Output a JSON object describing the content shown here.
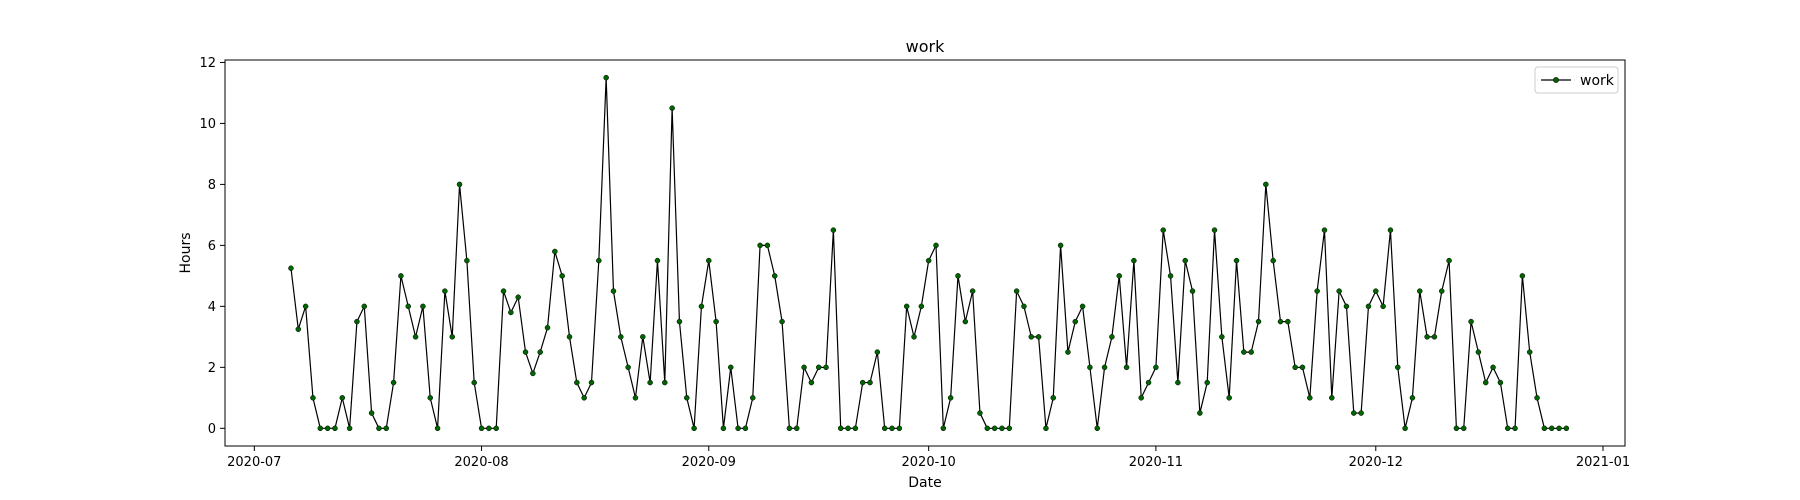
{
  "chart_data": {
    "type": "line",
    "title": "work",
    "xlabel": "Date",
    "ylabel": "Hours",
    "x_start": "2020-07-06",
    "x_end": "2020-12-26",
    "xlim": [
      "2020-06-27",
      "2021-01-04"
    ],
    "ylim": [
      -0.58,
      12.08
    ],
    "x_ticks": [
      {
        "date": "2020-07-01",
        "label": "2020-07"
      },
      {
        "date": "2020-08-01",
        "label": "2020-08"
      },
      {
        "date": "2020-09-01",
        "label": "2020-09"
      },
      {
        "date": "2020-10-01",
        "label": "2020-10"
      },
      {
        "date": "2020-11-01",
        "label": "2020-11"
      },
      {
        "date": "2020-12-01",
        "label": "2020-12"
      },
      {
        "date": "2021-01-01",
        "label": "2021-01"
      }
    ],
    "y_ticks": [
      0,
      2,
      4,
      6,
      8,
      10,
      12
    ],
    "grid": false,
    "legend": {
      "position": "upper-right",
      "entries": [
        "work"
      ]
    },
    "line_color": "#000000",
    "marker_color": "#006400",
    "series": [
      {
        "name": "work",
        "values": [
          5.25,
          3.25,
          4,
          1,
          0,
          0,
          0,
          1,
          0,
          3.5,
          4,
          0.5,
          0,
          0,
          1.5,
          5,
          4,
          3,
          4,
          1,
          0,
          4.5,
          3,
          8,
          5.5,
          1.5,
          0,
          0,
          0,
          4.5,
          3.8,
          4.3,
          2.5,
          1.8,
          2.5,
          3.3,
          5.8,
          5,
          3,
          1.5,
          1,
          1.5,
          5.5,
          11.5,
          4.5,
          3,
          2,
          1,
          3,
          1.5,
          5.5,
          1.5,
          10.5,
          3.5,
          1,
          0,
          4,
          5.5,
          3.5,
          0,
          2,
          0,
          0,
          1,
          6,
          6,
          5,
          3.5,
          0,
          0,
          2,
          1.5,
          2,
          2,
          6.5,
          0,
          0,
          0,
          1.5,
          1.5,
          2.5,
          0,
          0,
          0,
          4,
          3,
          4,
          5.5,
          6,
          0,
          1,
          5,
          3.5,
          4.5,
          0.5,
          0,
          0,
          0,
          0,
          4.5,
          4,
          3,
          3,
          0,
          1,
          6,
          2.5,
          3.5,
          4,
          2,
          0,
          2,
          3,
          5,
          2,
          5.5,
          1,
          1.5,
          2,
          6.5,
          5,
          1.5,
          5.5,
          4.5,
          0.5,
          1.5,
          6.5,
          3,
          1,
          5.5,
          2.5,
          2.5,
          3.5,
          8,
          5.5,
          3.5,
          3.5,
          2,
          2,
          1,
          4.5,
          6.5,
          1,
          4.5,
          4,
          0.5,
          0.5,
          4,
          4.5,
          4,
          6.5,
          2,
          0,
          1,
          4.5,
          3,
          3,
          4.5,
          5.5,
          0,
          0,
          3.5,
          2.5,
          1.5,
          2,
          1.5,
          0,
          0,
          5,
          2.5,
          1,
          0,
          0,
          0,
          0
        ]
      }
    ]
  }
}
